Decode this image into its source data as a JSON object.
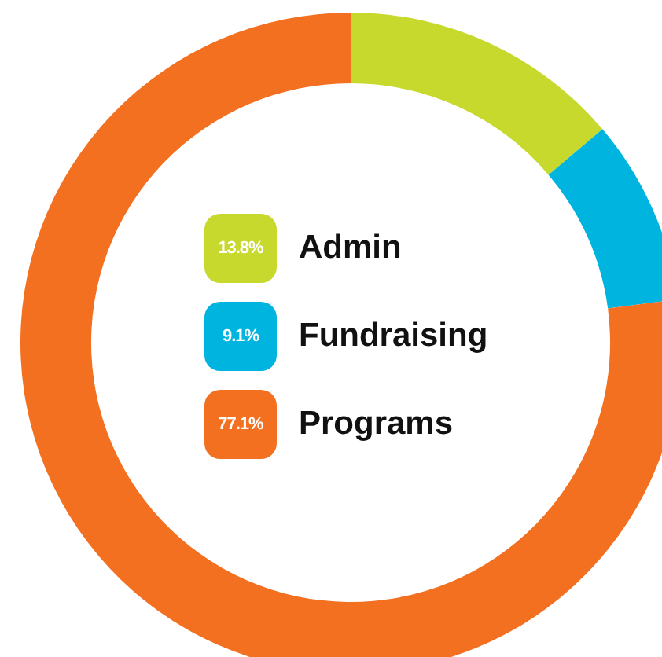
{
  "chart_data": {
    "type": "donut",
    "categories": [
      "Admin",
      "Fundraising",
      "Programs"
    ],
    "values": [
      13.8,
      9.1,
      77.1
    ],
    "colors": [
      "#c8d92e",
      "#00b4e0",
      "#f37021"
    ],
    "value_labels": [
      "13.8%",
      "9.1%",
      "77.1%"
    ],
    "legend": "center"
  }
}
